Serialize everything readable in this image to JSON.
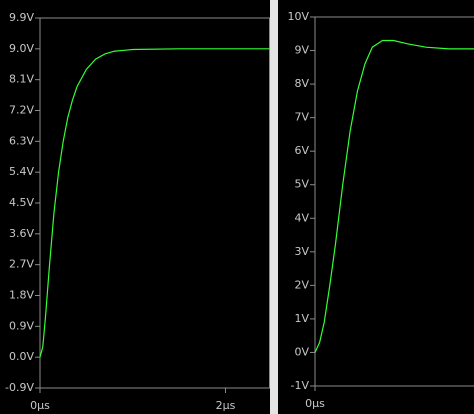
{
  "chart_data": [
    {
      "type": "line",
      "x": [
        0,
        0.03,
        0.06,
        0.1,
        0.15,
        0.2,
        0.25,
        0.3,
        0.35,
        0.4,
        0.5,
        0.6,
        0.7,
        0.8,
        1.0,
        1.5,
        2.0,
        2.48
      ],
      "series": [
        {
          "color": "#33ff33",
          "values": [
            0,
            0.3,
            1.2,
            2.6,
            4.2,
            5.4,
            6.3,
            7.0,
            7.5,
            7.9,
            8.4,
            8.7,
            8.85,
            8.93,
            8.98,
            9.0,
            9.0,
            9.0
          ]
        }
      ],
      "xlim": [
        0,
        2.48
      ],
      "ylim": [
        -0.9,
        9.9
      ],
      "xticks": [
        {
          "value": 0,
          "label": "0µs"
        },
        {
          "value": 2,
          "label": "2µs"
        }
      ],
      "yticks": [
        {
          "value": -0.9,
          "label": "-0.9V"
        },
        {
          "value": 0,
          "label": "0.0V"
        },
        {
          "value": 0.9,
          "label": "0.9V"
        },
        {
          "value": 1.8,
          "label": "1.8V"
        },
        {
          "value": 2.7,
          "label": "2.7V"
        },
        {
          "value": 3.6,
          "label": "3.6V"
        },
        {
          "value": 4.5,
          "label": "4.5V"
        },
        {
          "value": 5.4,
          "label": "5.4V"
        },
        {
          "value": 6.3,
          "label": "6.3V"
        },
        {
          "value": 7.2,
          "label": "7.2V"
        },
        {
          "value": 8.1,
          "label": "8.1V"
        },
        {
          "value": 9.0,
          "label": "9.0V"
        },
        {
          "value": 9.9,
          "label": "9.9V"
        }
      ]
    },
    {
      "type": "line",
      "x": [
        0,
        0.05,
        0.1,
        0.16,
        0.22,
        0.3,
        0.38,
        0.46,
        0.54,
        0.62,
        0.73,
        0.85,
        1.0,
        1.2,
        1.45,
        1.72
      ],
      "series": [
        {
          "color": "#33ff33",
          "values": [
            0,
            0.3,
            0.9,
            2.0,
            3.2,
            5.0,
            6.6,
            7.8,
            8.6,
            9.1,
            9.3,
            9.3,
            9.2,
            9.1,
            9.05,
            9.05
          ]
        }
      ],
      "xlim": [
        0,
        1.72
      ],
      "ylim": [
        -1,
        10
      ],
      "xticks": [
        {
          "value": 0,
          "label": "0µs"
        }
      ],
      "yticks": [
        {
          "value": -1,
          "label": "-1V"
        },
        {
          "value": 0,
          "label": "0V"
        },
        {
          "value": 1,
          "label": "1V"
        },
        {
          "value": 2,
          "label": "2V"
        },
        {
          "value": 3,
          "label": "3V"
        },
        {
          "value": 4,
          "label": "4V"
        },
        {
          "value": 5,
          "label": "5V"
        },
        {
          "value": 6,
          "label": "6V"
        },
        {
          "value": 7,
          "label": "7V"
        },
        {
          "value": 8,
          "label": "8V"
        },
        {
          "value": 9,
          "label": "9V"
        },
        {
          "value": 10,
          "label": "10V"
        }
      ]
    }
  ]
}
